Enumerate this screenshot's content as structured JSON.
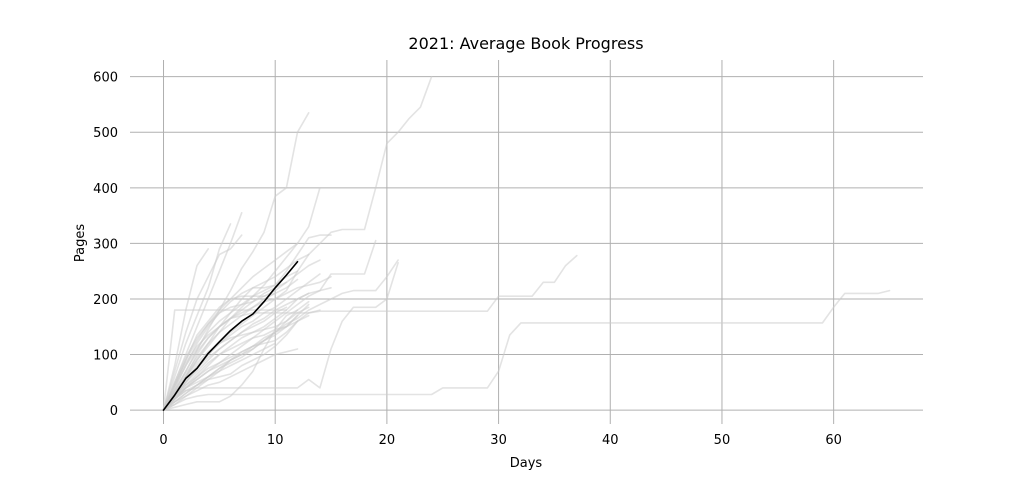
{
  "chart_data": {
    "type": "line",
    "title": "2021: Average Book Progress",
    "xlabel": "Days",
    "ylabel": "Pages",
    "xlim": [
      -3,
      68
    ],
    "ylim": [
      -25,
      630
    ],
    "x_ticks": [
      0,
      10,
      20,
      30,
      40,
      50,
      60
    ],
    "y_ticks": [
      0,
      100,
      200,
      300,
      400,
      500,
      600
    ],
    "grid": true,
    "colors": {
      "books": "#cccccc",
      "average": "#000000",
      "grid": "#b0b0b0"
    },
    "series": [
      {
        "role": "average",
        "x": [
          0,
          1,
          2,
          3,
          4,
          5,
          6,
          7,
          8,
          9,
          10,
          11,
          12
        ],
        "y": [
          0,
          27,
          57,
          75,
          102,
          123,
          143,
          160,
          173,
          195,
          220,
          243,
          267
        ]
      },
      {
        "x": [
          0,
          1,
          2,
          3,
          4,
          5,
          6,
          7,
          8,
          9,
          10,
          11,
          12,
          13
        ],
        "y": [
          0,
          35,
          70,
          108,
          145,
          180,
          215,
          255,
          285,
          320,
          385,
          400,
          500,
          535
        ]
      },
      {
        "x": [
          0,
          1,
          2,
          3,
          4,
          5,
          6,
          7,
          8,
          9,
          10,
          11,
          12,
          13,
          14,
          15,
          16,
          17,
          18,
          19,
          20,
          21,
          22,
          23,
          24
        ],
        "y": [
          0,
          25,
          50,
          75,
          100,
          120,
          140,
          155,
          170,
          185,
          200,
          215,
          250,
          280,
          300,
          320,
          325,
          325,
          325,
          400,
          480,
          500,
          525,
          545,
          600
        ]
      },
      {
        "x": [
          0,
          1,
          2,
          3,
          4,
          5,
          6
        ],
        "y": [
          0,
          60,
          120,
          170,
          220,
          290,
          335
        ]
      },
      {
        "x": [
          0,
          1,
          2,
          3,
          4,
          5,
          6,
          7
        ],
        "y": [
          0,
          50,
          100,
          150,
          200,
          250,
          300,
          355
        ]
      },
      {
        "x": [
          0,
          1,
          2,
          3,
          4,
          5,
          6,
          7
        ],
        "y": [
          0,
          70,
          140,
          200,
          240,
          280,
          290,
          315
        ]
      },
      {
        "x": [
          0,
          1,
          2,
          3,
          4
        ],
        "y": [
          0,
          80,
          180,
          260,
          290
        ]
      },
      {
        "x": [
          0,
          1,
          2,
          3,
          4,
          5,
          6,
          7,
          8,
          9,
          10,
          11,
          12,
          13,
          14
        ],
        "y": [
          0,
          30,
          60,
          90,
          115,
          140,
          165,
          185,
          205,
          225,
          250,
          275,
          300,
          330,
          400
        ]
      },
      {
        "x": [
          0,
          1,
          2,
          3,
          4,
          5,
          6,
          7,
          8,
          9,
          10,
          11,
          12,
          13,
          14,
          15,
          16,
          17,
          18,
          19
        ],
        "y": [
          0,
          20,
          40,
          55,
          70,
          85,
          100,
          115,
          130,
          145,
          160,
          175,
          190,
          205,
          215,
          245,
          245,
          245,
          245,
          305
        ]
      },
      {
        "x": [
          0,
          1,
          2,
          3,
          4,
          5,
          6,
          7,
          8,
          9,
          10,
          11,
          12,
          13,
          14,
          15,
          16,
          17,
          18,
          19,
          20,
          21
        ],
        "y": [
          0,
          15,
          30,
          45,
          60,
          75,
          90,
          105,
          115,
          125,
          140,
          155,
          165,
          180,
          190,
          200,
          210,
          215,
          215,
          215,
          240,
          270
        ]
      },
      {
        "x": [
          0,
          1,
          2,
          3,
          4,
          5,
          6,
          7,
          8,
          9,
          10,
          11,
          12,
          13,
          14,
          15,
          16,
          17,
          18,
          19,
          20,
          21,
          22,
          23,
          24,
          25,
          26,
          27,
          28,
          29,
          30,
          31,
          32,
          33,
          34,
          35,
          36,
          37
        ],
        "y": [
          0,
          30,
          60,
          100,
          130,
          150,
          165,
          170,
          175,
          175,
          175,
          175,
          175,
          175,
          178,
          178,
          178,
          178,
          178,
          178,
          178,
          178,
          178,
          178,
          178,
          178,
          178,
          178,
          178,
          178,
          205,
          205,
          205,
          205,
          230,
          230,
          260,
          278
        ]
      },
      {
        "x": [
          0,
          1,
          2,
          3,
          4,
          5,
          6,
          7,
          8,
          9,
          10,
          11,
          12,
          13,
          14,
          15,
          16,
          17,
          18,
          19,
          20,
          21,
          22,
          23,
          24,
          25,
          26,
          27,
          28,
          29,
          30,
          31,
          32,
          33,
          34,
          35,
          36,
          37,
          38,
          39,
          40,
          41,
          42,
          43,
          44,
          45,
          46,
          47,
          48,
          49,
          50,
          51,
          52,
          53,
          54,
          55,
          56,
          57,
          58,
          59,
          60,
          61,
          62,
          63,
          64,
          65
        ],
        "y": [
          0,
          10,
          20,
          25,
          28,
          28,
          28,
          28,
          28,
          28,
          28,
          28,
          28,
          28,
          28,
          28,
          28,
          28,
          28,
          28,
          28,
          28,
          28,
          28,
          28,
          40,
          40,
          40,
          40,
          40,
          70,
          135,
          157,
          157,
          157,
          157,
          157,
          157,
          157,
          157,
          157,
          157,
          157,
          157,
          157,
          157,
          157,
          157,
          157,
          157,
          157,
          157,
          157,
          157,
          157,
          157,
          157,
          157,
          157,
          157,
          185,
          210,
          210,
          210,
          210,
          215
        ]
      },
      {
        "x": [
          0,
          1,
          2,
          3,
          4,
          5,
          6,
          7,
          8,
          9,
          10,
          11,
          12,
          13,
          14,
          15,
          16,
          17,
          18,
          19,
          20,
          21
        ],
        "y": [
          0,
          20,
          35,
          40,
          40,
          40,
          40,
          40,
          40,
          40,
          40,
          40,
          40,
          55,
          40,
          110,
          160,
          185,
          185,
          185,
          200,
          265
        ]
      },
      {
        "x": [
          0,
          1,
          2,
          3,
          4,
          5,
          6,
          7,
          8,
          9,
          10,
          11,
          12,
          13,
          14,
          15
        ],
        "y": [
          0,
          40,
          80,
          120,
          150,
          175,
          195,
          210,
          220,
          220,
          225,
          250,
          280,
          310,
          315,
          315
        ]
      },
      {
        "x": [
          0,
          1,
          2,
          3,
          4,
          5,
          6,
          7,
          8,
          9,
          10,
          11,
          12,
          13
        ],
        "y": [
          0,
          30,
          60,
          90,
          120,
          150,
          175,
          200,
          220,
          230,
          240,
          255,
          270,
          280
        ]
      },
      {
        "x": [
          0,
          1,
          2,
          3,
          4,
          5,
          6,
          7,
          8,
          9,
          10,
          11,
          12,
          13,
          14
        ],
        "y": [
          0,
          45,
          90,
          135,
          160,
          185,
          200,
          205,
          205,
          205,
          215,
          230,
          245,
          260,
          270
        ]
      },
      {
        "x": [
          0,
          1,
          2,
          3,
          4,
          5,
          6,
          7,
          8,
          9,
          10,
          11,
          12,
          13,
          14,
          15
        ],
        "y": [
          0,
          35,
          70,
          105,
          130,
          150,
          165,
          175,
          185,
          195,
          200,
          210,
          220,
          225,
          230,
          240
        ]
      },
      {
        "x": [
          0,
          1,
          2,
          3,
          4,
          5,
          6,
          7,
          8,
          9,
          10,
          11,
          12,
          13,
          14,
          15
        ],
        "y": [
          0,
          25,
          50,
          70,
          90,
          110,
          125,
          140,
          155,
          165,
          180,
          190,
          200,
          210,
          215,
          220
        ]
      },
      {
        "x": [
          0,
          1,
          2,
          3,
          4,
          5,
          6,
          7,
          8,
          9,
          10,
          11,
          12
        ],
        "y": [
          0,
          40,
          80,
          110,
          140,
          160,
          175,
          190,
          205,
          215,
          225,
          240,
          250
        ]
      },
      {
        "x": [
          0,
          1,
          2,
          3,
          4,
          5,
          6,
          7,
          8,
          9,
          10,
          11,
          12,
          13,
          14
        ],
        "y": [
          0,
          30,
          55,
          80,
          100,
          120,
          135,
          150,
          160,
          175,
          185,
          200,
          215,
          230,
          245
        ]
      },
      {
        "x": [
          0,
          1,
          2,
          3,
          4,
          5,
          6,
          7,
          8,
          9,
          10,
          11,
          12,
          13
        ],
        "y": [
          0,
          20,
          40,
          55,
          70,
          80,
          90,
          100,
          110,
          125,
          140,
          160,
          175,
          185
        ]
      },
      {
        "x": [
          0,
          1,
          2,
          3,
          4,
          5,
          6,
          7,
          8,
          9,
          10,
          11,
          12,
          13,
          14
        ],
        "y": [
          0,
          25,
          45,
          60,
          75,
          85,
          95,
          105,
          115,
          120,
          125,
          140,
          160,
          175,
          180
        ]
      },
      {
        "x": [
          0,
          1,
          2,
          3,
          4,
          5,
          6,
          7,
          8,
          9,
          10,
          11,
          12
        ],
        "y": [
          0,
          35,
          65,
          95,
          120,
          140,
          155,
          170,
          185,
          200,
          210,
          220,
          235
        ]
      },
      {
        "x": [
          0,
          1,
          2,
          3,
          4,
          5,
          6,
          7,
          8,
          9,
          10,
          11,
          12,
          13
        ],
        "y": [
          0,
          15,
          30,
          45,
          60,
          75,
          85,
          95,
          110,
          125,
          135,
          150,
          170,
          190
        ]
      },
      {
        "x": [
          0,
          1,
          2,
          3,
          4,
          5,
          6,
          7,
          8,
          9,
          10,
          11,
          12,
          13
        ],
        "y": [
          0,
          30,
          60,
          85,
          105,
          120,
          130,
          135,
          140,
          145,
          150,
          160,
          180,
          195
        ]
      },
      {
        "x": [
          0,
          1,
          2,
          3,
          4,
          5,
          6,
          7,
          8,
          9,
          10,
          11,
          12
        ],
        "y": [
          0,
          20,
          35,
          45,
          55,
          60,
          65,
          80,
          90,
          100,
          115,
          135,
          160
        ]
      },
      {
        "x": [
          0,
          1,
          2,
          3,
          4,
          5,
          6,
          7,
          8,
          9,
          10,
          11,
          12,
          13
        ],
        "y": [
          0,
          20,
          40,
          60,
          80,
          100,
          115,
          130,
          140,
          150,
          165,
          180,
          200,
          210
        ]
      },
      {
        "x": [
          0,
          1,
          2,
          3,
          4,
          5,
          6,
          7,
          8,
          9,
          10,
          11
        ],
        "y": [
          0,
          25,
          50,
          75,
          95,
          110,
          125,
          140,
          150,
          160,
          175,
          185
        ]
      },
      {
        "x": [
          0,
          1,
          2,
          3,
          4,
          5,
          6,
          7,
          8,
          9,
          10,
          11,
          12
        ],
        "y": [
          0,
          10,
          25,
          40,
          55,
          70,
          90,
          100,
          115,
          130,
          140,
          150,
          170
        ]
      },
      {
        "x": [
          0,
          1,
          2,
          3,
          4,
          5,
          6,
          7,
          8,
          9,
          10
        ],
        "y": [
          0,
          25,
          40,
          50,
          60,
          70,
          80,
          90,
          100,
          110,
          120
        ]
      },
      {
        "x": [
          0,
          1,
          2,
          3,
          4,
          5,
          6,
          7,
          8,
          9,
          10,
          11,
          12
        ],
        "y": [
          0,
          15,
          25,
          35,
          45,
          50,
          60,
          70,
          80,
          90,
          100,
          105,
          110
        ]
      },
      {
        "x": [
          0,
          1,
          2,
          3,
          4,
          5,
          6,
          7,
          8,
          9,
          10
        ],
        "y": [
          0,
          50,
          95,
          130,
          155,
          175,
          185,
          190,
          195,
          205,
          210
        ]
      },
      {
        "x": [
          0,
          1,
          2,
          3,
          4,
          5,
          6,
          7,
          8,
          9,
          10,
          11
        ],
        "y": [
          0,
          45,
          85,
          115,
          135,
          150,
          165,
          180,
          195,
          210,
          220,
          230
        ]
      },
      {
        "x": [
          0,
          1,
          2,
          3,
          4,
          5,
          6,
          7,
          8,
          9,
          10,
          11,
          12
        ],
        "y": [
          0,
          5,
          10,
          15,
          15,
          15,
          25,
          45,
          70,
          110,
          145,
          170,
          180
        ]
      },
      {
        "x": [
          0,
          1,
          2,
          3,
          4,
          5,
          6,
          7,
          8,
          9,
          10,
          11,
          12,
          13
        ],
        "y": [
          0,
          20,
          45,
          65,
          85,
          100,
          110,
          120,
          130,
          135,
          145,
          150,
          160,
          170
        ]
      },
      {
        "x": [
          0,
          1,
          2,
          3,
          4,
          5,
          6,
          7,
          8,
          9,
          10,
          11
        ],
        "y": [
          0,
          180,
          180,
          180,
          180,
          180,
          180,
          180,
          180,
          180,
          180,
          180
        ]
      },
      {
        "x": [
          0,
          1,
          2,
          3,
          4,
          5,
          6,
          7,
          8,
          9,
          10,
          11,
          12
        ],
        "y": [
          0,
          45,
          90,
          125,
          155,
          180,
          200,
          220,
          240,
          255,
          270,
          285,
          300
        ]
      }
    ]
  }
}
